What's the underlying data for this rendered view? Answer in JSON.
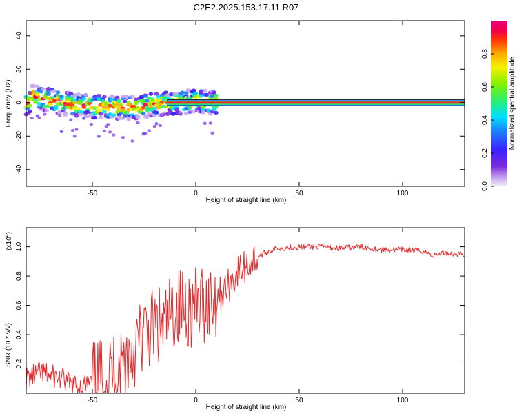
{
  "title": "C2E2.2025.153.17.11.R07",
  "colors": {
    "snr_line": "#e8282a",
    "spectrum_band": "#e8282a",
    "axis": "#000000"
  },
  "colorbar": {
    "label": "Normalized spectral amplitude",
    "ticks": [
      "0.0",
      "0.2",
      "0.4",
      "0.6",
      "0.8"
    ],
    "tick_values": [
      0.0,
      0.2,
      0.4,
      0.6,
      0.8
    ],
    "range": [
      0,
      1
    ],
    "colormap": "rainbow (purple-blue-cyan-green-yellow-red-magenta)"
  },
  "chart_data": [
    {
      "type": "heatmap",
      "xlabel": "Height of straight line (km)",
      "ylabel": "Frequency (Hz)",
      "xlim": [
        -82,
        130
      ],
      "ylim": [
        -50,
        49
      ],
      "xticks": [
        -50,
        0,
        50,
        100
      ],
      "xtick_labels": [
        "-50",
        "0",
        "50",
        "100"
      ],
      "yticks": [
        -40,
        -20,
        0,
        20,
        40
      ],
      "ytick_labels": [
        "-40",
        "-20",
        "0",
        "20",
        "40"
      ],
      "grid": false,
      "band": {
        "description": "Dominant carrier line near 0 Hz, scattered for heights below about 10 km, steady from 10 to 130 km",
        "center_frequency": [
          {
            "x": -80,
            "y": 5
          },
          {
            "x": -70,
            "y": 1
          },
          {
            "x": -60,
            "y": -1
          },
          {
            "x": -50,
            "y": -2
          },
          {
            "x": -40,
            "y": -3
          },
          {
            "x": -30,
            "y": -3
          },
          {
            "x": -20,
            "y": -1
          },
          {
            "x": -10,
            "y": 0
          },
          {
            "x": 0,
            "y": 1
          },
          {
            "x": 10,
            "y": 0
          },
          {
            "x": 50,
            "y": 0
          },
          {
            "x": 100,
            "y": 0
          },
          {
            "x": 130,
            "y": 0
          }
        ]
      }
    },
    {
      "type": "line",
      "xlabel": "Height of straight line (km)",
      "ylabel": "SNR (10 * v/v)",
      "yscale_label": "(x10",
      "yscale_exponent": "4",
      "xlim": [
        -82,
        130
      ],
      "ylim": [
        0,
        1.13
      ],
      "xticks": [
        -50,
        0,
        50,
        100
      ],
      "xtick_labels": [
        "-50",
        "0",
        "50",
        "100"
      ],
      "yticks": [
        0.2,
        0.4,
        0.6,
        0.8,
        1.0
      ],
      "ytick_labels": [
        "0.2",
        "0.4",
        "0.6",
        "0.8",
        "1.0"
      ],
      "grid": false,
      "series": [
        {
          "name": "",
          "x": [
            -82,
            -75,
            -70,
            -65,
            -60,
            -55,
            -50,
            -45,
            -40,
            -35,
            -30,
            -25,
            -20,
            -15,
            -10,
            -5,
            0,
            5,
            10,
            15,
            20,
            25,
            30,
            35,
            40,
            50,
            60,
            70,
            80,
            90,
            100,
            110,
            115,
            120,
            125,
            130
          ],
          "y": [
            0.1,
            0.14,
            0.12,
            0.1,
            0.05,
            0.05,
            0.07,
            0.1,
            0.15,
            0.22,
            0.3,
            0.4,
            0.45,
            0.45,
            0.58,
            0.6,
            0.58,
            0.62,
            0.66,
            0.72,
            0.82,
            0.88,
            0.93,
            0.97,
            0.99,
            1.0,
            1.0,
            0.99,
            1.0,
            0.98,
            0.98,
            0.97,
            0.94,
            0.96,
            0.95,
            0.95
          ]
        }
      ]
    }
  ]
}
